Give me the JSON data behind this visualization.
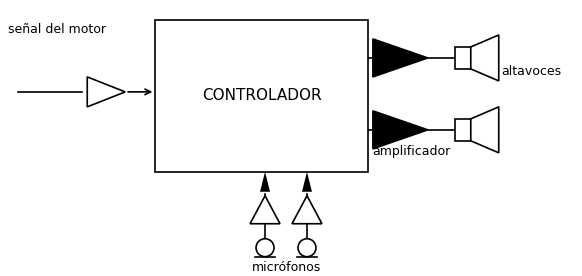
{
  "bg_color": "#ffffff",
  "controller_label": "CONTROLADOR",
  "label_senal": "señal del motor",
  "label_altavoces": "altavoces",
  "label_amplificador": "amplificador",
  "label_microfonos": "micrófonos",
  "font_size": 9,
  "line_color": "#000000",
  "figw": 5.82,
  "figh": 2.76,
  "dpi": 100
}
